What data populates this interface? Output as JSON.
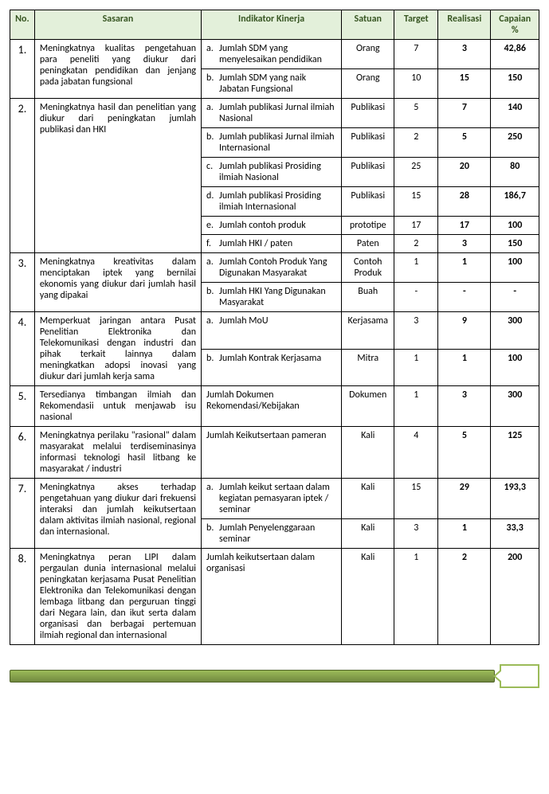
{
  "headers": {
    "no": "No.",
    "sasaran": "Sasaran",
    "indikator": "Indikator Kinerja",
    "satuan": "Satuan",
    "target": "Target",
    "realisasi": "Realisasi",
    "capaian": "Capaian %"
  },
  "rows": [
    {
      "no": "1.",
      "sasaran": "Meningkatnya kualitas pengetahuan para peneliti yang diukur dari peningkatan pendidikan dan jenjang pada jabatan fungsional",
      "inds": [
        {
          "letter": "a.",
          "text": "Jumlah SDM yang menyelesaikan pendidikan",
          "satuan": "Orang",
          "target": "7",
          "real": "3",
          "cap": "42,86"
        },
        {
          "letter": "b.",
          "text": "Jumlah SDM yang naik Jabatan Fungsional",
          "satuan": "Orang",
          "target": "10",
          "real": "15",
          "cap": "150"
        }
      ]
    },
    {
      "no": "2.",
      "sasaran": "Meningkatnya hasil dan penelitian  yang diukur dari peningkatan jumlah publikasi dan HKI",
      "inds": [
        {
          "letter": "a.",
          "text": "Jumlah publikasi Jurnal ilmiah Nasional",
          "satuan": "Publikasi",
          "target": "5",
          "real": "7",
          "cap": "140"
        },
        {
          "letter": "b.",
          "text": "Jumlah publikasi Jurnal ilmiah Internasional",
          "satuan": "Publikasi",
          "target": "2",
          "real": "5",
          "cap": "250"
        },
        {
          "letter": "c.",
          "text": "Jumlah publikasi Prosiding ilmiah Nasional",
          "satuan": "Publikasi",
          "target": "25",
          "real": "20",
          "cap": "80"
        },
        {
          "letter": "d.",
          "text": "Jumlah publikasi Prosiding ilmiah Internasional",
          "satuan": "Publikasi",
          "target": "15",
          "real": "28",
          "cap": "186,7"
        },
        {
          "letter": "e.",
          "text": "Jumlah contoh produk",
          "satuan": "prototipe",
          "target": "17",
          "real": "17",
          "cap": "100"
        },
        {
          "letter": "f.",
          "text": "Jumlah HKI / paten",
          "satuan": "Paten",
          "target": "2",
          "real": "3",
          "cap": "150"
        }
      ]
    },
    {
      "no": "3.",
      "sasaran": "Meningkatnya kreativitas dalam menciptakan iptek yang bernilai ekonomis yang diukur dari jumlah hasil yang dipakai",
      "inds": [
        {
          "letter": "a.",
          "text": "Jumlah Contoh Produk Yang Digunakan Masyarakat",
          "satuan": "Contoh Produk",
          "target": "1",
          "real": "1",
          "cap": "100"
        },
        {
          "letter": "b.",
          "text": "Jumlah HKI Yang Digunakan Masyarakat",
          "satuan": "Buah",
          "target": "-",
          "real": "-",
          "cap": "-"
        }
      ]
    },
    {
      "no": "4.",
      "sasaran": "Memperkuat jaringan antara Pusat Penelitian Elektronika dan Telekomunikasi dengan industri dan pihak terkait lainnya dalam meningkatkan adopsi inovasi yang diukur dari jumlah kerja sama",
      "inds": [
        {
          "letter": "a.",
          "text": "Jumlah MoU",
          "satuan": "Kerjasama",
          "target": "3",
          "real": "9",
          "cap": "300"
        },
        {
          "letter": "b.",
          "text": "Jumlah Kontrak Kerjasama",
          "satuan": "Mitra",
          "target": "1",
          "real": "1",
          "cap": "100"
        }
      ]
    },
    {
      "no": "5.",
      "sasaran": "Tersedianya timbangan ilmiah dan Rekomendasii untuk menjawab isu nasional",
      "inds": [
        {
          "letter": "",
          "text": "Jumlah Dokumen Rekomendasi/Kebijakan",
          "satuan": "Dokumen",
          "target": "1",
          "real": "3",
          "cap": "300"
        }
      ]
    },
    {
      "no": "6.",
      "sasaran": "Meningkatnya perilaku \"rasional\" dalam masyarakat melalui terdiseminasinya informasi teknologi hasil litbang ke masyarakat / industri",
      "inds": [
        {
          "letter": "",
          "text": "Jumlah Keikutsertaan pameran",
          "satuan": "Kali",
          "target": "4",
          "real": "5",
          "cap": "125"
        }
      ]
    },
    {
      "no": "7.",
      "sasaran": "Meningkatnya akses terhadap pengetahuan yang diukur dari frekuensi interaksi dan jumlah keikutsertaan dalam aktivitas ilmiah nasional, regional dan internasional.",
      "inds": [
        {
          "letter": "a.",
          "text": "Jumlah keikut sertaan dalam kegiatan pemasyaran iptek / seminar",
          "satuan": "Kali",
          "target": "15",
          "real": "29",
          "cap": "193,3"
        },
        {
          "letter": "b.",
          "text": "Jumlah Penyelenggaraan seminar",
          "satuan": "Kali",
          "target": "3",
          "real": "1",
          "cap": "33,3"
        }
      ]
    },
    {
      "no": "8.",
      "sasaran": "Meningkatnya peran LIPI dalam pergaulan dunia internasional melalui peningkatan kerjasama Pusat Penelitian Elektronika dan Telekomunikasi dengan lembaga litbang dan perguruan tinggi dari Negara lain, dan ikut serta dalam organisasi dan berbagai pertemuan ilmiah regional dan internasional",
      "inds": [
        {
          "letter": "",
          "text": "Jumlah keikutsertaan dalam organisasi",
          "satuan": "Kali",
          "target": "1",
          "real": "2",
          "cap": "200"
        }
      ]
    }
  ],
  "footer_page": ""
}
